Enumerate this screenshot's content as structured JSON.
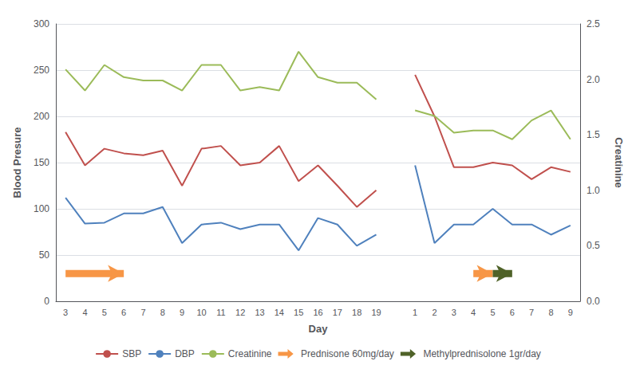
{
  "chart_data": {
    "type": "line",
    "xlabel": "Day",
    "ylabel": "Blood Presure",
    "y2label": "Creatinine",
    "categories": [
      3,
      4,
      5,
      6,
      7,
      8,
      9,
      10,
      11,
      12,
      13,
      14,
      15,
      16,
      17,
      18,
      19,
      null,
      1,
      2,
      3,
      4,
      5,
      6,
      7,
      8,
      9
    ],
    "series": [
      {
        "name": "SBP",
        "color": "#c0504d",
        "values": [
          183,
          147,
          165,
          160,
          158,
          163,
          125,
          165,
          168,
          147,
          150,
          168,
          130,
          147,
          125,
          102,
          120,
          null,
          245,
          200,
          145,
          145,
          150,
          147,
          132,
          145,
          140
        ]
      },
      {
        "name": "DBP",
        "color": "#4f81bd",
        "values": [
          112,
          84,
          85,
          95,
          95,
          102,
          63,
          83,
          85,
          78,
          83,
          83,
          55,
          90,
          83,
          60,
          72,
          null,
          147,
          63,
          83,
          83,
          100,
          83,
          83,
          72,
          82
        ]
      },
      {
        "name": "Creatinine",
        "color": "#9bbb59",
        "axis": "y2",
        "values": [
          2.09,
          1.9,
          2.13,
          2.02,
          1.99,
          1.99,
          1.9,
          2.13,
          2.13,
          1.9,
          1.93,
          1.9,
          2.25,
          2.02,
          1.97,
          1.97,
          1.82,
          null,
          1.72,
          1.67,
          1.52,
          1.54,
          1.54,
          1.46,
          1.63,
          1.72,
          1.46
        ]
      },
      {
        "name": "Prednisone 60mg/day",
        "color": "#f79646",
        "type": "arrow",
        "values": [
          30,
          30,
          30,
          30,
          null,
          null,
          null,
          null,
          null,
          null,
          null,
          null,
          null,
          null,
          null,
          null,
          null,
          null,
          null,
          null,
          null,
          30,
          30,
          null,
          null,
          null,
          null
        ]
      },
      {
        "name": "Methylprednisolone 1gr/day",
        "color": "#4f6228",
        "type": "arrow",
        "values": [
          null,
          null,
          null,
          null,
          null,
          null,
          null,
          null,
          null,
          null,
          null,
          null,
          null,
          null,
          null,
          null,
          null,
          null,
          null,
          null,
          null,
          null,
          30,
          30,
          null,
          null,
          null
        ]
      }
    ],
    "ylim": [
      0,
      300
    ],
    "yticks": [
      0,
      50,
      100,
      150,
      200,
      250,
      300
    ],
    "y2lim": [
      0,
      2.5
    ],
    "y2ticks": [
      {
        "value": 0,
        "label": "0.0"
      },
      0.5,
      {
        "value": 1,
        "label": "1.0"
      },
      1.5,
      {
        "value": 2,
        "label": "2.0"
      },
      2.5
    ],
    "grid": true,
    "legend": "bottom"
  }
}
